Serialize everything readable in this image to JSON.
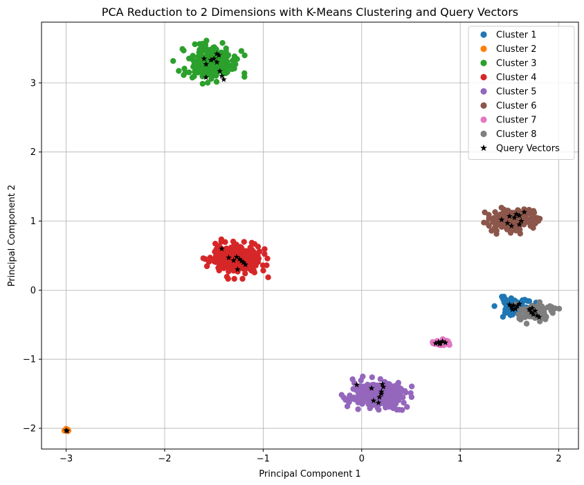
{
  "chart_data": {
    "type": "scatter",
    "title": "PCA Reduction to 2 Dimensions with K-Means Clustering and Query Vectors",
    "xlabel": "Principal Component 1",
    "ylabel": "Principal Component 2",
    "xlim": [
      -3.25,
      2.2
    ],
    "ylim": [
      -2.3,
      3.88
    ],
    "xticks": [
      -3,
      -2,
      -1,
      0,
      1,
      2
    ],
    "yticks": [
      -2,
      -1,
      0,
      1,
      2,
      3
    ],
    "grid": true,
    "legend_position": "top-right",
    "series": [
      {
        "name": "Cluster 1",
        "color": "#1f77b4",
        "marker": "circle",
        "center": [
          1.56,
          -0.23
        ],
        "spread": [
          0.09,
          0.06
        ],
        "count": 70,
        "seed": 11
      },
      {
        "name": "Cluster 2",
        "color": "#ff7f0e",
        "marker": "circle",
        "center": [
          -3.0,
          -2.03
        ],
        "spread": [
          0.012,
          0.01
        ],
        "count": 6,
        "seed": 12
      },
      {
        "name": "Cluster 3",
        "color": "#2ca02c",
        "marker": "circle",
        "center": [
          -1.55,
          3.3
        ],
        "spread": [
          0.14,
          0.12
        ],
        "count": 240,
        "seed": 13
      },
      {
        "name": "Cluster 4",
        "color": "#d62728",
        "marker": "circle",
        "center": [
          -1.27,
          0.45
        ],
        "spread": [
          0.13,
          0.11
        ],
        "count": 260,
        "seed": 14
      },
      {
        "name": "Cluster 5",
        "color": "#9467bd",
        "marker": "circle",
        "center": [
          0.16,
          -1.5
        ],
        "spread": [
          0.14,
          0.1
        ],
        "count": 260,
        "seed": 15
      },
      {
        "name": "Cluster 6",
        "color": "#8c564b",
        "marker": "circle",
        "center": [
          1.55,
          1.02
        ],
        "spread": [
          0.12,
          0.08
        ],
        "count": 170,
        "seed": 16
      },
      {
        "name": "Cluster 7",
        "color": "#e377c2",
        "marker": "circle",
        "center": [
          0.8,
          -0.76
        ],
        "spread": [
          0.04,
          0.025
        ],
        "count": 35,
        "seed": 17
      },
      {
        "name": "Cluster 8",
        "color": "#7f7f7f",
        "marker": "circle",
        "center": [
          1.77,
          -0.33
        ],
        "spread": [
          0.09,
          0.06
        ],
        "count": 90,
        "seed": 18
      }
    ],
    "query_vectors": {
      "name": "Query Vectors",
      "color": "#000000",
      "marker": "star",
      "points": [
        [
          -1.6,
          3.35
        ],
        [
          -1.58,
          3.27
        ],
        [
          -1.47,
          3.42
        ],
        [
          -1.45,
          3.4
        ],
        [
          -1.5,
          3.35
        ],
        [
          -1.53,
          3.33
        ],
        [
          -1.44,
          3.17
        ],
        [
          -1.42,
          3.1
        ],
        [
          -1.4,
          3.05
        ],
        [
          -1.58,
          3.08
        ],
        [
          -1.47,
          3.3
        ],
        [
          -1.42,
          0.6
        ],
        [
          -1.35,
          0.47
        ],
        [
          -1.3,
          0.43
        ],
        [
          -1.27,
          0.48
        ],
        [
          -1.24,
          0.45
        ],
        [
          -1.2,
          0.4
        ],
        [
          -1.18,
          0.37
        ],
        [
          -1.26,
          0.3
        ],
        [
          -1.22,
          0.42
        ],
        [
          -0.05,
          -1.37
        ],
        [
          0.1,
          -1.42
        ],
        [
          0.12,
          -1.6
        ],
        [
          0.17,
          -1.63
        ],
        [
          0.18,
          -1.55
        ],
        [
          0.2,
          -1.47
        ],
        [
          0.22,
          -1.4
        ],
        [
          0.21,
          -1.36
        ],
        [
          0.2,
          -1.5
        ],
        [
          1.42,
          1.02
        ],
        [
          1.48,
          0.97
        ],
        [
          1.52,
          0.93
        ],
        [
          1.55,
          1.05
        ],
        [
          1.57,
          1.1
        ],
        [
          1.6,
          1.08
        ],
        [
          1.62,
          1.0
        ],
        [
          1.65,
          1.13
        ],
        [
          1.6,
          0.95
        ],
        [
          1.5,
          1.07
        ],
        [
          1.5,
          -0.21
        ],
        [
          1.52,
          -0.25
        ],
        [
          1.54,
          -0.22
        ],
        [
          1.56,
          -0.27
        ],
        [
          1.58,
          -0.23
        ],
        [
          1.6,
          -0.2
        ],
        [
          1.53,
          -0.28
        ],
        [
          1.7,
          -0.28
        ],
        [
          1.72,
          -0.32
        ],
        [
          1.74,
          -0.35
        ],
        [
          1.76,
          -0.3
        ],
        [
          1.78,
          -0.37
        ],
        [
          1.8,
          -0.39
        ],
        [
          1.73,
          -0.26
        ],
        [
          0.75,
          -0.77
        ],
        [
          0.78,
          -0.75
        ],
        [
          0.8,
          -0.77
        ],
        [
          0.82,
          -0.74
        ],
        [
          0.85,
          -0.76
        ],
        [
          0.79,
          -0.78
        ],
        [
          -3.0,
          -2.03
        ],
        [
          -2.99,
          -2.04
        ]
      ]
    }
  }
}
